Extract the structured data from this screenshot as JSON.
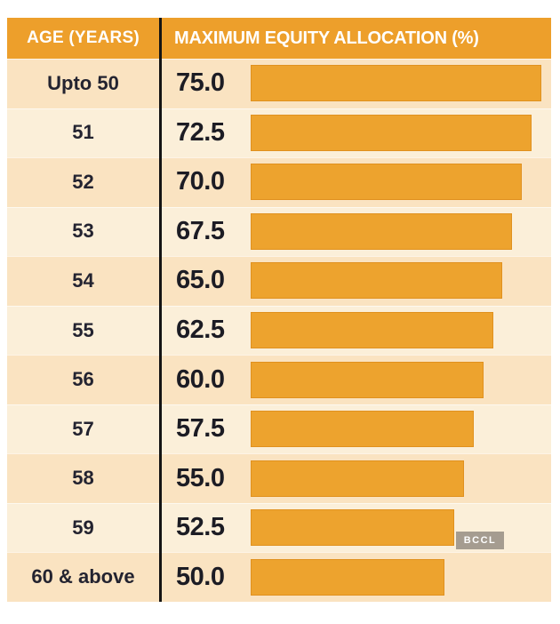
{
  "table": {
    "header": {
      "age_label": "AGE (YEARS)",
      "value_label": "MAXIMUM EQUITY ALLOCATION (%)"
    },
    "rows": [
      {
        "age": "Upto 50",
        "value": "75.0",
        "pct": 75.0
      },
      {
        "age": "51",
        "value": "72.5",
        "pct": 72.5
      },
      {
        "age": "52",
        "value": "70.0",
        "pct": 70.0
      },
      {
        "age": "53",
        "value": "67.5",
        "pct": 67.5
      },
      {
        "age": "54",
        "value": "65.0",
        "pct": 65.0
      },
      {
        "age": "55",
        "value": "62.5",
        "pct": 62.5
      },
      {
        "age": "56",
        "value": "60.0",
        "pct": 60.0
      },
      {
        "age": "57",
        "value": "57.5",
        "pct": 57.5
      },
      {
        "age": "58",
        "value": "55.0",
        "pct": 55.0
      },
      {
        "age": "59",
        "value": "52.5",
        "pct": 52.5
      },
      {
        "age": "60 & above",
        "value": "50.0",
        "pct": 50.0
      }
    ]
  },
  "watermark": {
    "label": "BCCL"
  },
  "colors": {
    "orange_header": "#ED9F2B",
    "orange_bar": "#EDA32E",
    "row_dark": "#FAE3C1",
    "row_light": "#FBEFD9",
    "divider": "#141414",
    "badge_bg": "#A59C90",
    "header_text": "#FFFFFF",
    "value_text": "#1C1C24",
    "age_text": "#232330"
  },
  "chart_data": {
    "type": "bar",
    "orientation": "horizontal",
    "categories": [
      "Upto 50",
      "51",
      "52",
      "53",
      "54",
      "55",
      "56",
      "57",
      "58",
      "59",
      "60 & above"
    ],
    "values": [
      75.0,
      72.5,
      70.0,
      67.5,
      65.0,
      62.5,
      60.0,
      57.5,
      55.0,
      52.5,
      50.0
    ],
    "title": "",
    "xlabel": "MAXIMUM EQUITY ALLOCATION (%)",
    "ylabel": "AGE (YEARS)",
    "xlim": [
      0,
      80
    ],
    "grid": false,
    "legend": "none",
    "bar_color": "#EDA32E",
    "value_labels_shown": true
  }
}
